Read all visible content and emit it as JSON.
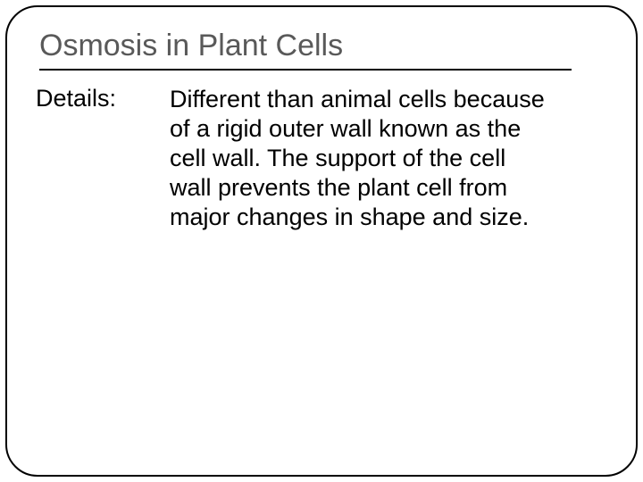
{
  "slide": {
    "title": "Osmosis in Plant Cells",
    "label": "Details:",
    "body": "Different than animal cells because of a rigid outer wall known as the cell wall. The support of the cell wall prevents the plant cell from major changes in shape and size."
  },
  "style": {
    "title_color": "#595959",
    "text_color": "#000000",
    "border_color": "#000000",
    "background_color": "#ffffff",
    "title_fontsize": 34,
    "body_fontsize": 27,
    "border_radius": 36
  }
}
